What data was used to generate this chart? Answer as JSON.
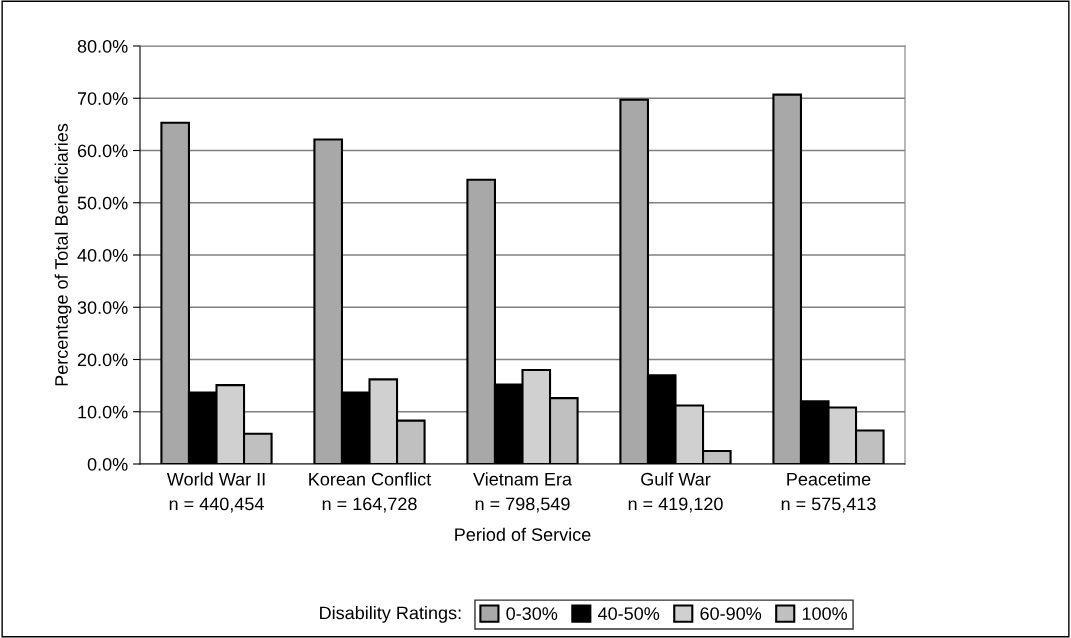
{
  "chart_data": {
    "type": "bar",
    "xlabel": "Period of Service",
    "ylabel": "Percentage of Total Beneficiaries",
    "legend_title": "Disability Ratings:",
    "categories": [
      "World War II\nn = 440,454",
      "Korean Conflict\nn = 164,728",
      "Vietnam Era\nn = 798,549",
      "Gulf War\nn = 419,120",
      "Peacetime\nn = 575,413"
    ],
    "series": [
      {
        "name": "0-30%",
        "color": "#a8a8a8",
        "values": [
          65.3,
          62.1,
          54.4,
          69.7,
          70.7
        ]
      },
      {
        "name": "40-50%",
        "color": "#000000",
        "values": [
          13.7,
          13.7,
          15.2,
          17.0,
          12.0
        ]
      },
      {
        "name": "60-90%",
        "color": "#d0d0d0",
        "values": [
          15.1,
          16.2,
          18.0,
          11.2,
          10.8
        ]
      },
      {
        "name": "100%",
        "color": "#c0c0c0",
        "values": [
          5.8,
          8.3,
          12.6,
          2.5,
          6.4
        ]
      }
    ],
    "ylim": [
      0,
      80
    ],
    "yticks": [
      {
        "value": 0,
        "label": "0.0%"
      },
      {
        "value": 10,
        "label": "10.0%"
      },
      {
        "value": 20,
        "label": "20.0%"
      },
      {
        "value": 30,
        "label": "30.0%"
      },
      {
        "value": 40,
        "label": "40.0%"
      },
      {
        "value": 50,
        "label": "50.0%"
      },
      {
        "value": 60,
        "label": "60.0%"
      },
      {
        "value": 70,
        "label": "70.0%"
      },
      {
        "value": 80,
        "label": "80.0%"
      }
    ],
    "grid": "y",
    "legend": "bottom"
  }
}
